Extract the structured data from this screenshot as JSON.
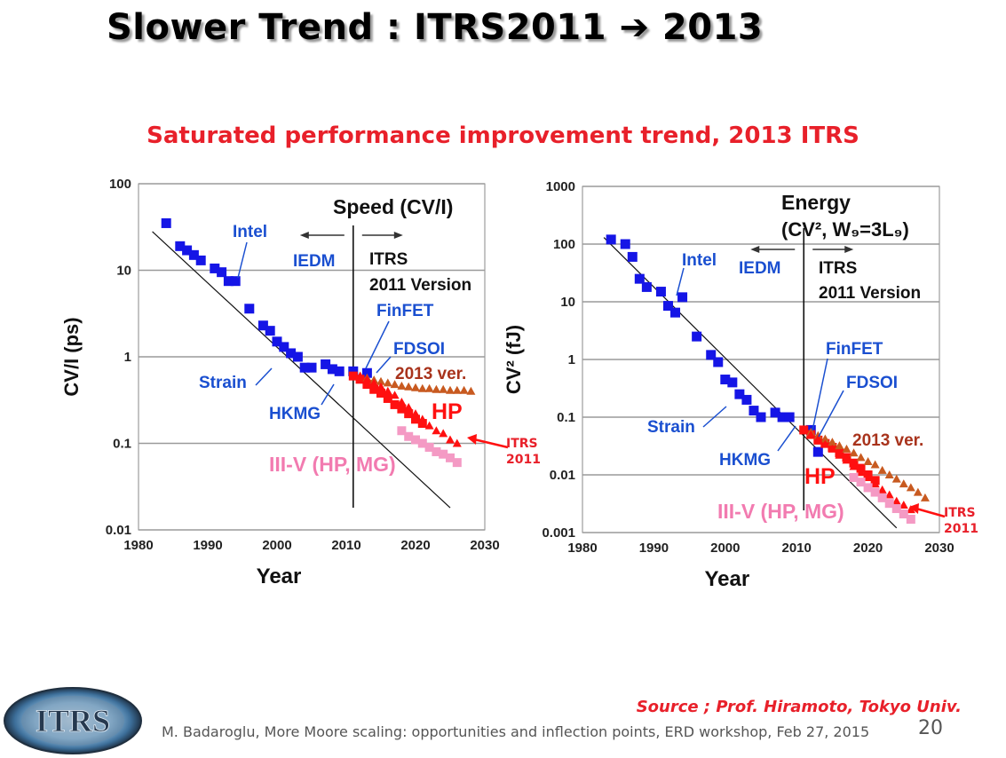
{
  "title": "Slower Trend : ITRS2011 ➔ 2013",
  "subtitle": "Saturated performance improvement trend, 2013 ITRS",
  "source": "Source ; Prof. Hiramoto, Tokyo Univ.",
  "footer": "M. Badaroglu, More Moore scaling: opportunities and inflection points, ERD workshop, Feb 27, 2015",
  "page_number": "20",
  "logo_text": "ITRS",
  "colors": {
    "accent_red": "#e8202a",
    "intel_blue": "#1515e6",
    "itrs_red": "#ff1010",
    "ver2013": "#c85a20",
    "iiiv_pink": "#f49ac4",
    "annotation_blue": "#1a4fd0"
  },
  "chart_data": [
    {
      "type": "scatter",
      "title": "Speed (CV/I)",
      "xlabel": "Year",
      "ylabel": "CV/I (ps)",
      "yscale": "log",
      "xlim": [
        1980,
        2030
      ],
      "ylim": [
        0.01,
        100
      ],
      "xticks": [
        "1980",
        "1990",
        "2000",
        "2010",
        "2020",
        "2030"
      ],
      "yticks": [
        "100",
        "10",
        "1",
        "0.1",
        "0.01"
      ],
      "annotations": [
        "Intel",
        "IEDM",
        "ITRS",
        "2011 Version",
        "FinFET",
        "FDSOI",
        "2013 ver.",
        "HP",
        "Strain",
        "HKMG",
        "III-V (HP, MG)"
      ],
      "note": [
        "ITRS",
        "2011"
      ],
      "trend_line": {
        "x": [
          1982,
          2025
        ],
        "y": [
          28,
          0.018
        ]
      },
      "divider_year": 2011,
      "series": [
        {
          "name": "Intel",
          "marker": "square",
          "color": "#1515e6",
          "x": [
            1984,
            1986,
            1987,
            1988,
            1989,
            1991,
            1992,
            1993,
            1994,
            1996,
            1998,
            1999,
            2000,
            2001,
            2002,
            2003,
            2004,
            2005,
            2007,
            2008,
            2009,
            2011,
            2013
          ],
          "y": [
            35,
            19,
            17,
            15,
            13,
            10.5,
            9.5,
            7.5,
            7.5,
            3.6,
            2.3,
            2.0,
            1.5,
            1.3,
            1.1,
            1.0,
            0.75,
            0.75,
            0.82,
            0.72,
            0.68,
            0.68,
            0.65
          ]
        },
        {
          "name": "ITRS 2011 HP",
          "marker": "square",
          "color": "#ff1010",
          "x": [
            2011,
            2012,
            2013,
            2014,
            2015,
            2016,
            2017,
            2018,
            2019,
            2020,
            2021
          ],
          "y": [
            0.6,
            0.55,
            0.48,
            0.42,
            0.38,
            0.33,
            0.28,
            0.25,
            0.22,
            0.19,
            0.17
          ]
        },
        {
          "name": "2013 ver.",
          "marker": "triangle",
          "color": "#c85a20",
          "x": [
            2012,
            2013,
            2014,
            2015,
            2016,
            2017,
            2018,
            2019,
            2020,
            2021,
            2022,
            2023,
            2024,
            2025,
            2026,
            2027,
            2028
          ],
          "y": [
            0.6,
            0.57,
            0.54,
            0.52,
            0.5,
            0.48,
            0.46,
            0.45,
            0.44,
            0.43,
            0.43,
            0.42,
            0.42,
            0.41,
            0.41,
            0.41,
            0.4
          ]
        },
        {
          "name": "2013 HP",
          "marker": "triangle",
          "color": "#ff1010",
          "x": [
            2012,
            2013,
            2014,
            2015,
            2016,
            2017,
            2018,
            2019,
            2020,
            2021,
            2022,
            2023,
            2024,
            2025,
            2026
          ],
          "y": [
            0.6,
            0.55,
            0.5,
            0.45,
            0.4,
            0.36,
            0.3,
            0.26,
            0.22,
            0.19,
            0.16,
            0.14,
            0.13,
            0.11,
            0.1
          ]
        },
        {
          "name": "III-V (HP, MG)",
          "marker": "square",
          "color": "#f49ac4",
          "x": [
            2018,
            2019,
            2020,
            2021,
            2022,
            2023,
            2024,
            2025,
            2026
          ],
          "y": [
            0.14,
            0.12,
            0.11,
            0.1,
            0.09,
            0.08,
            0.075,
            0.068,
            0.06
          ]
        }
      ]
    },
    {
      "type": "scatter",
      "title": "Energy",
      "title2": "(CV², W₉=3L₉)",
      "xlabel": "Year",
      "ylabel": "CV² (fJ)",
      "yscale": "log",
      "xlim": [
        1980,
        2030
      ],
      "ylim": [
        0.001,
        1000
      ],
      "xticks": [
        "1980",
        "1990",
        "2000",
        "2010",
        "2020",
        "2030"
      ],
      "yticks": [
        "1000",
        "100",
        "10",
        "1",
        "0.1",
        "0.01",
        "0.001"
      ],
      "annotations": [
        "Intel",
        "IEDM",
        "ITRS",
        "2011 Version",
        "FinFET",
        "FDSOI",
        "2013 ver.",
        "HP",
        "Strain",
        "HKMG",
        "III-V (HP, MG)"
      ],
      "note": [
        "ITRS",
        "2011"
      ],
      "trend_line": {
        "x": [
          1983,
          2024
        ],
        "y": [
          130,
          0.0012
        ]
      },
      "divider_year": 2011,
      "series": [
        {
          "name": "Intel",
          "marker": "square",
          "color": "#1515e6",
          "x": [
            1984,
            1986,
            1987,
            1988,
            1989,
            1991,
            1992,
            1993,
            1994,
            1996,
            1998,
            1999,
            2000,
            2001,
            2002,
            2003,
            2004,
            2005,
            2007,
            2008,
            2009,
            2012,
            2013
          ],
          "y": [
            120,
            100,
            60,
            25,
            18,
            15,
            8.5,
            6.5,
            12,
            2.5,
            1.2,
            0.9,
            0.45,
            0.4,
            0.25,
            0.2,
            0.13,
            0.1,
            0.12,
            0.1,
            0.1,
            0.06,
            0.025
          ]
        },
        {
          "name": "ITRS 2011 HP",
          "marker": "square",
          "color": "#ff1010",
          "x": [
            2011,
            2012,
            2013,
            2014,
            2015,
            2016,
            2017,
            2018,
            2019,
            2020,
            2021
          ],
          "y": [
            0.06,
            0.05,
            0.04,
            0.035,
            0.03,
            0.024,
            0.02,
            0.016,
            0.013,
            0.01,
            0.008
          ]
        },
        {
          "name": "2013 ver.",
          "marker": "triangle",
          "color": "#c85a20",
          "x": [
            2012,
            2013,
            2014,
            2015,
            2016,
            2017,
            2018,
            2019,
            2020,
            2021,
            2022,
            2023,
            2024,
            2025,
            2026,
            2027,
            2028
          ],
          "y": [
            0.055,
            0.048,
            0.042,
            0.037,
            0.032,
            0.028,
            0.024,
            0.02,
            0.017,
            0.015,
            0.012,
            0.01,
            0.0085,
            0.007,
            0.006,
            0.005,
            0.004
          ]
        },
        {
          "name": "2013 HP",
          "marker": "triangle",
          "color": "#ff1010",
          "x": [
            2012,
            2013,
            2014,
            2015,
            2016,
            2017,
            2018,
            2019,
            2020,
            2021,
            2022,
            2023,
            2024,
            2025,
            2026
          ],
          "y": [
            0.05,
            0.042,
            0.034,
            0.028,
            0.022,
            0.018,
            0.014,
            0.011,
            0.009,
            0.007,
            0.0055,
            0.0045,
            0.0035,
            0.003,
            0.0025
          ]
        },
        {
          "name": "III-V (HP, MG)",
          "marker": "square",
          "color": "#f49ac4",
          "x": [
            2018,
            2019,
            2020,
            2021,
            2022,
            2023,
            2024,
            2025,
            2026
          ],
          "y": [
            0.009,
            0.0075,
            0.006,
            0.005,
            0.004,
            0.0032,
            0.0026,
            0.0021,
            0.0017
          ]
        }
      ]
    }
  ]
}
